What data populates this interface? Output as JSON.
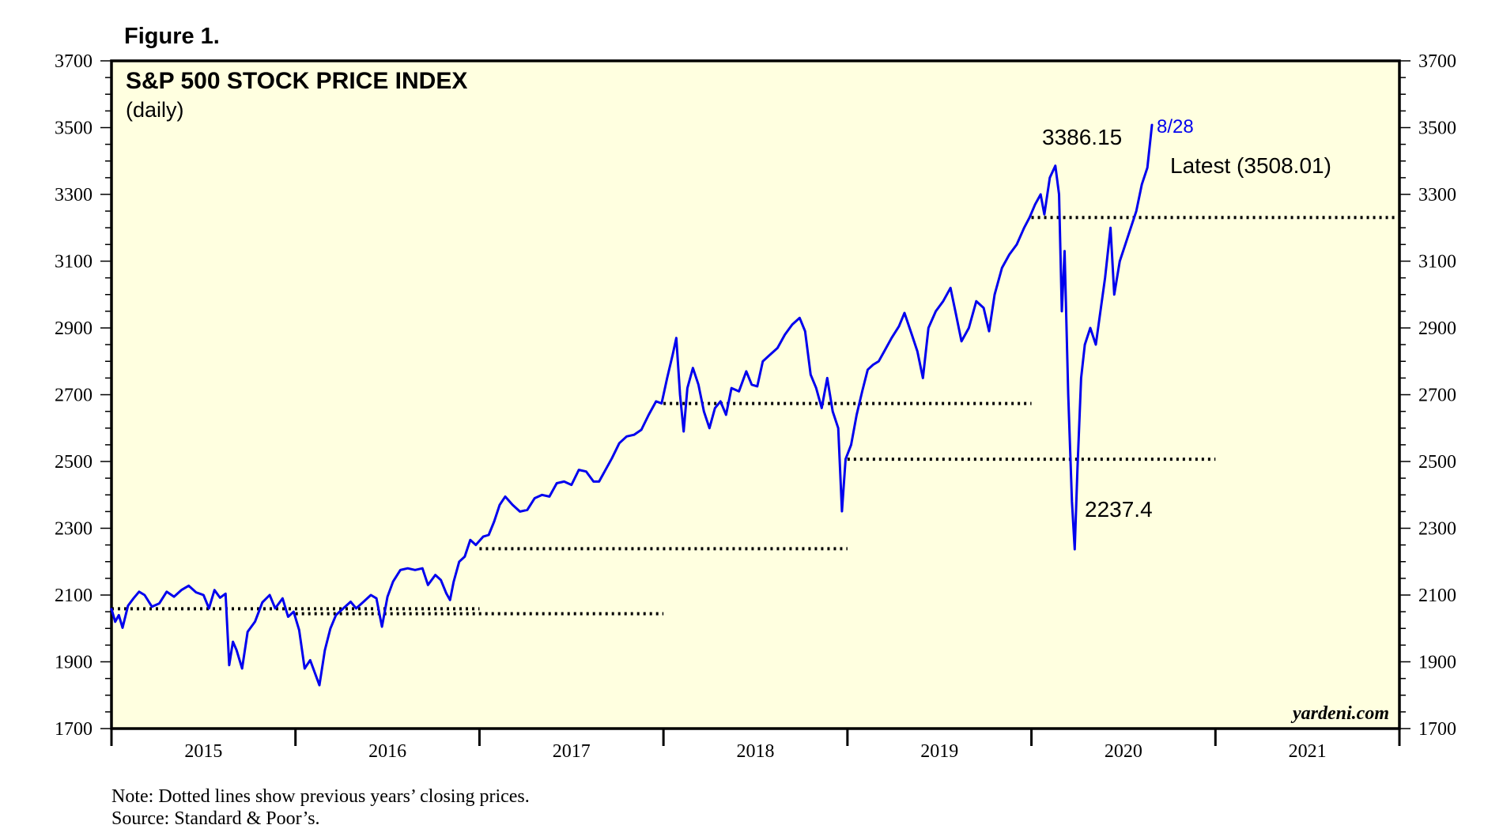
{
  "figure_label": "Figure 1.",
  "chart_data": {
    "type": "line",
    "title": "S&P 500 STOCK PRICE INDEX",
    "subtitle": "(daily)",
    "ylim": [
      1700,
      3700
    ],
    "y_ticks": [
      1700,
      1900,
      2100,
      2300,
      2500,
      2700,
      2900,
      3100,
      3300,
      3500,
      3700
    ],
    "y_ticks_labels": [
      "1700",
      "1900",
      "2100",
      "2300",
      "2500",
      "2700",
      "2900",
      "3100",
      "3300",
      "3500",
      "3700"
    ],
    "xlim": [
      2015.0,
      2022.0
    ],
    "x_tick_years": [
      2015,
      2016,
      2017,
      2018,
      2019,
      2020,
      2021,
      2022
    ],
    "x_labels": [
      "2015",
      "2016",
      "2017",
      "2018",
      "2019",
      "2020",
      "2021"
    ],
    "line_color": "#0000ee",
    "plot_bg": "#ffffe0",
    "series": [
      {
        "name": "S&P 500",
        "points": [
          [
            2015.0,
            2058
          ],
          [
            2015.02,
            2020
          ],
          [
            2015.04,
            2040
          ],
          [
            2015.06,
            2002
          ],
          [
            2015.09,
            2068
          ],
          [
            2015.12,
            2090
          ],
          [
            2015.15,
            2110
          ],
          [
            2015.18,
            2100
          ],
          [
            2015.22,
            2065
          ],
          [
            2015.26,
            2075
          ],
          [
            2015.3,
            2110
          ],
          [
            2015.34,
            2095
          ],
          [
            2015.38,
            2115
          ],
          [
            2015.42,
            2128
          ],
          [
            2015.46,
            2108
          ],
          [
            2015.5,
            2100
          ],
          [
            2015.53,
            2060
          ],
          [
            2015.56,
            2115
          ],
          [
            2015.59,
            2092
          ],
          [
            2015.62,
            2104
          ],
          [
            2015.64,
            1890
          ],
          [
            2015.66,
            1960
          ],
          [
            2015.68,
            1935
          ],
          [
            2015.71,
            1880
          ],
          [
            2015.74,
            1990
          ],
          [
            2015.78,
            2020
          ],
          [
            2015.82,
            2078
          ],
          [
            2015.86,
            2100
          ],
          [
            2015.89,
            2060
          ],
          [
            2015.93,
            2090
          ],
          [
            2015.96,
            2035
          ],
          [
            2015.99,
            2050
          ],
          [
            2016.02,
            1995
          ],
          [
            2016.05,
            1880
          ],
          [
            2016.08,
            1905
          ],
          [
            2016.11,
            1860
          ],
          [
            2016.13,
            1830
          ],
          [
            2016.16,
            1935
          ],
          [
            2016.19,
            2000
          ],
          [
            2016.22,
            2040
          ],
          [
            2016.26,
            2060
          ],
          [
            2016.3,
            2080
          ],
          [
            2016.33,
            2060
          ],
          [
            2016.37,
            2080
          ],
          [
            2016.41,
            2100
          ],
          [
            2016.44,
            2090
          ],
          [
            2016.47,
            2005
          ],
          [
            2016.5,
            2095
          ],
          [
            2016.53,
            2140
          ],
          [
            2016.57,
            2175
          ],
          [
            2016.61,
            2180
          ],
          [
            2016.65,
            2175
          ],
          [
            2016.69,
            2180
          ],
          [
            2016.72,
            2130
          ],
          [
            2016.76,
            2160
          ],
          [
            2016.79,
            2145
          ],
          [
            2016.82,
            2105
          ],
          [
            2016.84,
            2085
          ],
          [
            2016.86,
            2140
          ],
          [
            2016.89,
            2200
          ],
          [
            2016.92,
            2215
          ],
          [
            2016.95,
            2265
          ],
          [
            2016.98,
            2250
          ],
          [
            2017.02,
            2275
          ],
          [
            2017.05,
            2280
          ],
          [
            2017.08,
            2320
          ],
          [
            2017.11,
            2370
          ],
          [
            2017.14,
            2395
          ],
          [
            2017.18,
            2370
          ],
          [
            2017.22,
            2350
          ],
          [
            2017.26,
            2355
          ],
          [
            2017.3,
            2390
          ],
          [
            2017.34,
            2400
          ],
          [
            2017.38,
            2395
          ],
          [
            2017.42,
            2435
          ],
          [
            2017.46,
            2440
          ],
          [
            2017.5,
            2430
          ],
          [
            2017.54,
            2475
          ],
          [
            2017.58,
            2470
          ],
          [
            2017.62,
            2440
          ],
          [
            2017.65,
            2440
          ],
          [
            2017.68,
            2470
          ],
          [
            2017.72,
            2510
          ],
          [
            2017.76,
            2555
          ],
          [
            2017.8,
            2575
          ],
          [
            2017.84,
            2580
          ],
          [
            2017.88,
            2595
          ],
          [
            2017.92,
            2640
          ],
          [
            2017.96,
            2680
          ],
          [
            2017.99,
            2674
          ],
          [
            2018.02,
            2750
          ],
          [
            2018.05,
            2820
          ],
          [
            2018.07,
            2870
          ],
          [
            2018.09,
            2700
          ],
          [
            2018.11,
            2590
          ],
          [
            2018.13,
            2720
          ],
          [
            2018.16,
            2780
          ],
          [
            2018.19,
            2730
          ],
          [
            2018.22,
            2650
          ],
          [
            2018.25,
            2600
          ],
          [
            2018.28,
            2660
          ],
          [
            2018.31,
            2680
          ],
          [
            2018.34,
            2640
          ],
          [
            2018.37,
            2720
          ],
          [
            2018.41,
            2710
          ],
          [
            2018.45,
            2770
          ],
          [
            2018.48,
            2730
          ],
          [
            2018.51,
            2725
          ],
          [
            2018.54,
            2800
          ],
          [
            2018.58,
            2820
          ],
          [
            2018.62,
            2840
          ],
          [
            2018.66,
            2880
          ],
          [
            2018.7,
            2910
          ],
          [
            2018.74,
            2930
          ],
          [
            2018.77,
            2890
          ],
          [
            2018.8,
            2760
          ],
          [
            2018.83,
            2720
          ],
          [
            2018.86,
            2660
          ],
          [
            2018.89,
            2750
          ],
          [
            2018.92,
            2650
          ],
          [
            2018.95,
            2600
          ],
          [
            2018.97,
            2351
          ],
          [
            2018.99,
            2507
          ],
          [
            2019.02,
            2550
          ],
          [
            2019.05,
            2640
          ],
          [
            2019.08,
            2710
          ],
          [
            2019.11,
            2775
          ],
          [
            2019.14,
            2790
          ],
          [
            2019.17,
            2800
          ],
          [
            2019.2,
            2830
          ],
          [
            2019.24,
            2870
          ],
          [
            2019.28,
            2905
          ],
          [
            2019.31,
            2945
          ],
          [
            2019.35,
            2880
          ],
          [
            2019.38,
            2830
          ],
          [
            2019.41,
            2750
          ],
          [
            2019.44,
            2900
          ],
          [
            2019.48,
            2950
          ],
          [
            2019.52,
            2980
          ],
          [
            2019.56,
            3020
          ],
          [
            2019.59,
            2940
          ],
          [
            2019.62,
            2860
          ],
          [
            2019.66,
            2900
          ],
          [
            2019.7,
            2980
          ],
          [
            2019.74,
            2960
          ],
          [
            2019.77,
            2890
          ],
          [
            2019.8,
            3000
          ],
          [
            2019.84,
            3080
          ],
          [
            2019.88,
            3120
          ],
          [
            2019.92,
            3150
          ],
          [
            2019.96,
            3200
          ],
          [
            2019.99,
            3231
          ],
          [
            2020.02,
            3270
          ],
          [
            2020.05,
            3300
          ],
          [
            2020.07,
            3240
          ],
          [
            2020.1,
            3350
          ],
          [
            2020.13,
            3386
          ],
          [
            2020.15,
            3300
          ],
          [
            2020.165,
            2950
          ],
          [
            2020.18,
            3130
          ],
          [
            2020.2,
            2700
          ],
          [
            2020.22,
            2380
          ],
          [
            2020.235,
            2237
          ],
          [
            2020.25,
            2480
          ],
          [
            2020.27,
            2750
          ],
          [
            2020.29,
            2850
          ],
          [
            2020.32,
            2900
          ],
          [
            2020.35,
            2850
          ],
          [
            2020.38,
            2970
          ],
          [
            2020.4,
            3050
          ],
          [
            2020.43,
            3200
          ],
          [
            2020.45,
            3000
          ],
          [
            2020.48,
            3100
          ],
          [
            2020.51,
            3150
          ],
          [
            2020.54,
            3200
          ],
          [
            2020.57,
            3250
          ],
          [
            2020.6,
            3330
          ],
          [
            2020.63,
            3380
          ],
          [
            2020.655,
            3508
          ]
        ]
      }
    ],
    "reference_lines": [
      {
        "year": 2014,
        "value": 2058.9,
        "x_start": 2015.0,
        "x_end": 2017.0
      },
      {
        "year": 2015,
        "value": 2043.94,
        "x_start": 2016.0,
        "x_end": 2018.0
      },
      {
        "year": 2016,
        "value": 2238.83,
        "x_start": 2017.0,
        "x_end": 2019.0
      },
      {
        "year": 2017,
        "value": 2673.61,
        "x_start": 2018.0,
        "x_end": 2020.0
      },
      {
        "year": 2018,
        "value": 2506.85,
        "x_start": 2019.0,
        "x_end": 2021.0
      },
      {
        "year": 2019,
        "value": 3230.78,
        "x_start": 2020.0,
        "x_end": 2022.0
      }
    ],
    "annotations": {
      "peak_label": "3386.15",
      "trough_label": "2237.4",
      "date_label": "8/28",
      "latest_label": "Latest (3508.01)",
      "watermark": "yardeni.com"
    }
  },
  "notes": {
    "line1": "Note: Dotted lines show previous years’ closing prices.",
    "line2": "Source: Standard & Poor’s."
  }
}
